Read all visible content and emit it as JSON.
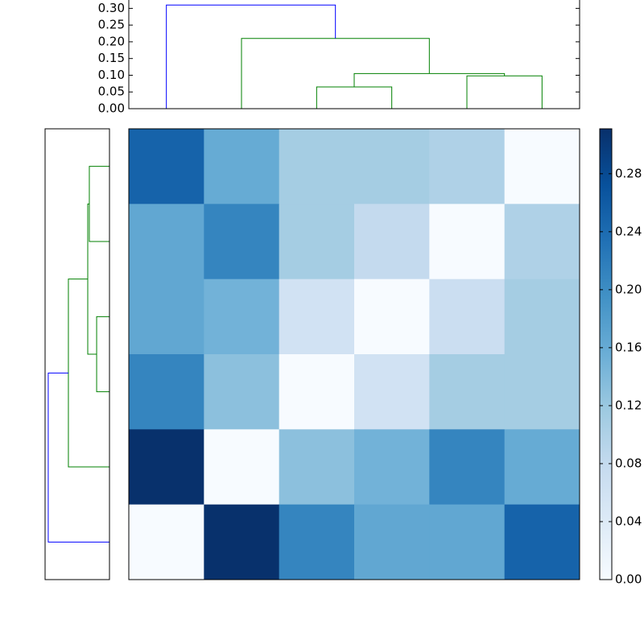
{
  "chart_data": {
    "type": "clustermap",
    "top_dendrogram": {
      "xlim": [
        0,
        60
      ],
      "ylim": [
        0,
        0.325
      ],
      "yticks": [
        {
          "value": 0,
          "label": "0.00"
        },
        {
          "value": 0.05,
          "label": "0.05"
        },
        {
          "value": 0.1,
          "label": "0.10"
        },
        {
          "value": 0.15,
          "label": "0.15"
        },
        {
          "value": 0.2,
          "label": "0.20"
        },
        {
          "value": 0.25,
          "label": "0.25"
        },
        {
          "value": 0.3,
          "label": "0.30"
        }
      ],
      "links": [
        {
          "leaf": [
            25,
            25,
            35,
            35
          ],
          "height": [
            0,
            0.065,
            0.065,
            0
          ],
          "color": "#008000"
        },
        {
          "leaf": [
            45,
            45,
            55,
            55
          ],
          "height": [
            0,
            0.098,
            0.098,
            0
          ],
          "color": "#008000"
        },
        {
          "leaf": [
            30,
            30,
            50,
            50
          ],
          "height": [
            0.065,
            0.105,
            0.105,
            0.098
          ],
          "color": "#008000"
        },
        {
          "leaf": [
            15,
            15,
            40,
            40
          ],
          "height": [
            0,
            0.21,
            0.21,
            0.105
          ],
          "color": "#008000"
        },
        {
          "leaf": [
            5,
            5,
            27.5,
            27.5
          ],
          "height": [
            0,
            0.31,
            0.31,
            0.21
          ],
          "color": "#0000ff"
        }
      ]
    },
    "left_dendrogram": {
      "leaflim": [
        0,
        60
      ],
      "heightlim": [
        0,
        0.326
      ],
      "links": [
        {
          "leaf": [
            45,
            45,
            55,
            55
          ],
          "height": [
            0,
            0.102,
            0.102,
            0
          ],
          "color": "#008000"
        },
        {
          "leaf": [
            25,
            25,
            35,
            35
          ],
          "height": [
            0,
            0.065,
            0.065,
            0
          ],
          "color": "#008000"
        },
        {
          "leaf": [
            30,
            30,
            50,
            50
          ],
          "height": [
            0.065,
            0.11,
            0.11,
            0.102
          ],
          "color": "#008000"
        },
        {
          "leaf": [
            15,
            15,
            40,
            40
          ],
          "height": [
            0,
            0.208,
            0.208,
            0.11
          ],
          "color": "#008000"
        },
        {
          "leaf": [
            5,
            5,
            27.5,
            27.5
          ],
          "height": [
            0,
            0.31,
            0.31,
            0.208
          ],
          "color": "#0000ff"
        }
      ]
    },
    "heatmap": {
      "values": [
        [
          0.25,
          0.16,
          0.11,
          0.11,
          0.1,
          0
        ],
        [
          0.165,
          0.21,
          0.11,
          0.08,
          0,
          0.1
        ],
        [
          0.165,
          0.15,
          0.06,
          0,
          0.07,
          0.11
        ],
        [
          0.21,
          0.13,
          0,
          0.06,
          0.11,
          0.11
        ],
        [
          0.31,
          0,
          0.13,
          0.15,
          0.21,
          0.16
        ],
        [
          0,
          0.31,
          0.21,
          0.165,
          0.165,
          0.25
        ]
      ],
      "vlim": [
        0,
        0.311
      ],
      "colormap": [
        "#f7fbff",
        "#deebf7",
        "#c6dbef",
        "#9ecae1",
        "#6baed6",
        "#4292c6",
        "#2171b5",
        "#08519c",
        "#08306b"
      ]
    },
    "colorbar": {
      "ticks": [
        {
          "value": 0,
          "label": "0.00"
        },
        {
          "value": 0.04,
          "label": "0.04"
        },
        {
          "value": 0.08,
          "label": "0.08"
        },
        {
          "value": 0.12,
          "label": "0.12"
        },
        {
          "value": 0.16,
          "label": "0.16"
        },
        {
          "value": 0.2,
          "label": "0.20"
        },
        {
          "value": 0.24,
          "label": "0.24"
        },
        {
          "value": 0.28,
          "label": "0.28"
        }
      ]
    }
  }
}
